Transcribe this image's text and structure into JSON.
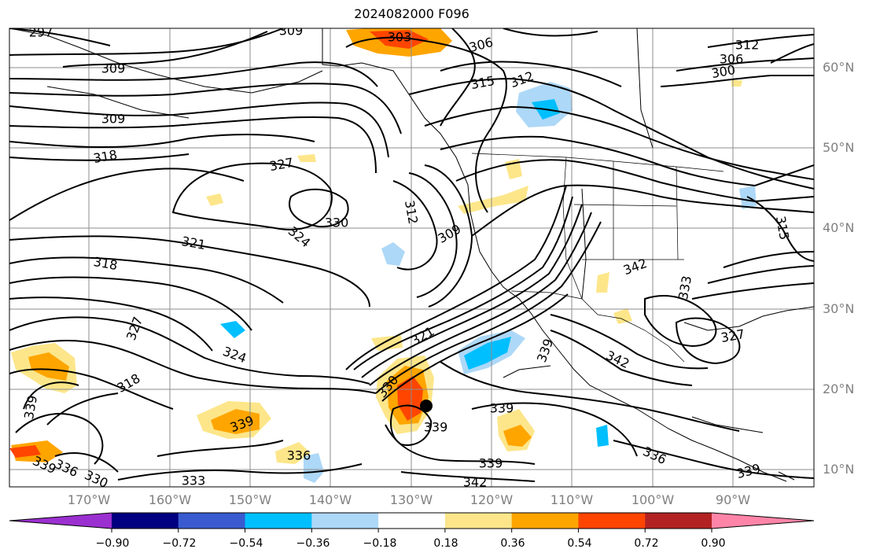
{
  "title": "2024082000 F096",
  "map": {
    "lat_labels": [
      "60°N",
      "50°N",
      "40°N",
      "30°N",
      "20°N",
      "10°N"
    ],
    "lon_labels": [
      "170°W",
      "160°W",
      "150°W",
      "140°W",
      "130°W",
      "120°W",
      "110°W",
      "100°W",
      "90°W"
    ],
    "contour_levels": [
      "297",
      "300",
      "303",
      "306",
      "309",
      "312",
      "315",
      "318",
      "321",
      "324",
      "327",
      "330",
      "333",
      "336",
      "339",
      "342"
    ],
    "contour_labels_shown": [
      "297",
      "303",
      "309",
      "306",
      "309",
      "306",
      "312",
      "315",
      "312",
      "300",
      "309",
      "318",
      "327",
      "330",
      "312",
      "309",
      "324",
      "321",
      "318",
      "327",
      "324",
      "318",
      "321",
      "342",
      "333",
      "327",
      "330",
      "339",
      "342",
      "339",
      "339",
      "339",
      "336",
      "339",
      "336",
      "333",
      "339",
      "342",
      "339",
      "336",
      "330",
      "339",
      "315"
    ],
    "shading_colors": {
      "neg_extreme": "#9b30d0",
      "neg_090": "#000080",
      "neg_072": "#3a5bd0",
      "neg_054": "#00bfff",
      "neg_036": "#add8f7",
      "neutral": "#ffffff",
      "pos_018": "#fde68a",
      "pos_036": "#ffa500",
      "pos_054": "#ff4500",
      "pos_072": "#b22222",
      "pos_extreme": "#ff85a8"
    },
    "storm_marker": "filled-circle",
    "graticule": true
  },
  "colorbar": {
    "tick_labels": [
      "−0.90",
      "−0.72",
      "−0.54",
      "−0.36",
      "−0.18",
      "0.18",
      "0.36",
      "0.54",
      "0.72",
      "0.90"
    ],
    "colors": [
      "#9b30d0",
      "#000080",
      "#3a5bd0",
      "#00bfff",
      "#add8f7",
      "#ffffff",
      "#fde68a",
      "#ffa500",
      "#ff4500",
      "#b22222",
      "#ff85a8"
    ]
  }
}
